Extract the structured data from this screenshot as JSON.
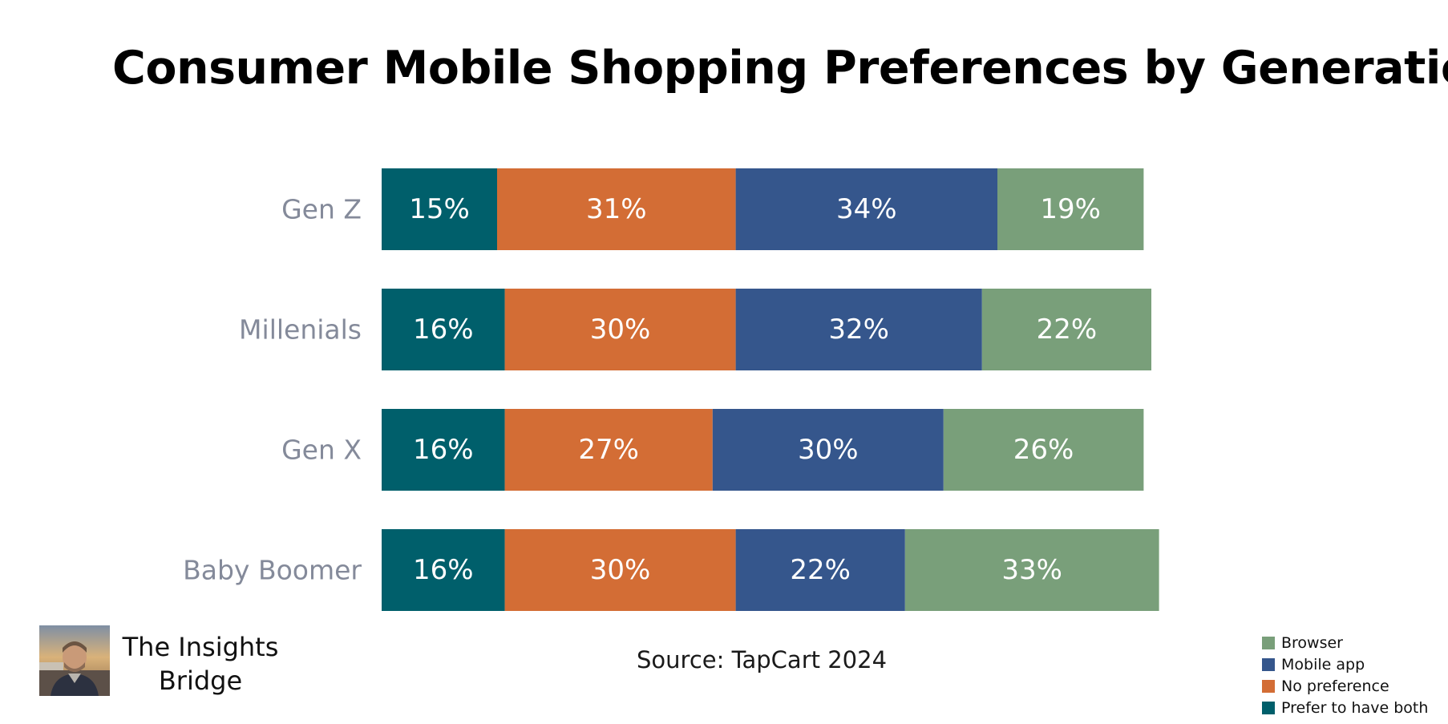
{
  "chart_data": {
    "type": "bar",
    "orientation": "horizontal",
    "stacked": true,
    "title": "Consumer Mobile Shopping Preferences by Generation",
    "categories": [
      "Gen Z",
      "Millenials",
      "Gen X",
      "Baby Boomer"
    ],
    "series": [
      {
        "name": "Prefer to have both",
        "color": "#005f6b",
        "values": [
          15,
          16,
          16,
          16
        ]
      },
      {
        "name": "No preference",
        "color": "#d36d35",
        "values": [
          31,
          30,
          27,
          30
        ]
      },
      {
        "name": "Mobile app",
        "color": "#35568c",
        "values": [
          34,
          32,
          30,
          22
        ]
      },
      {
        "name": "Browser",
        "color": "#799f7a",
        "values": [
          19,
          22,
          26,
          33
        ]
      }
    ],
    "value_suffix": "%",
    "xlim": [
      0,
      100
    ],
    "grid": false,
    "legend": {
      "position": "bottom-right",
      "order": [
        "Browser",
        "Mobile app",
        "No preference",
        "Prefer to have both"
      ]
    }
  },
  "source": "Source: TapCart 2024",
  "brand": {
    "name_line1": "The Insights",
    "name_line2": "Bridge"
  }
}
